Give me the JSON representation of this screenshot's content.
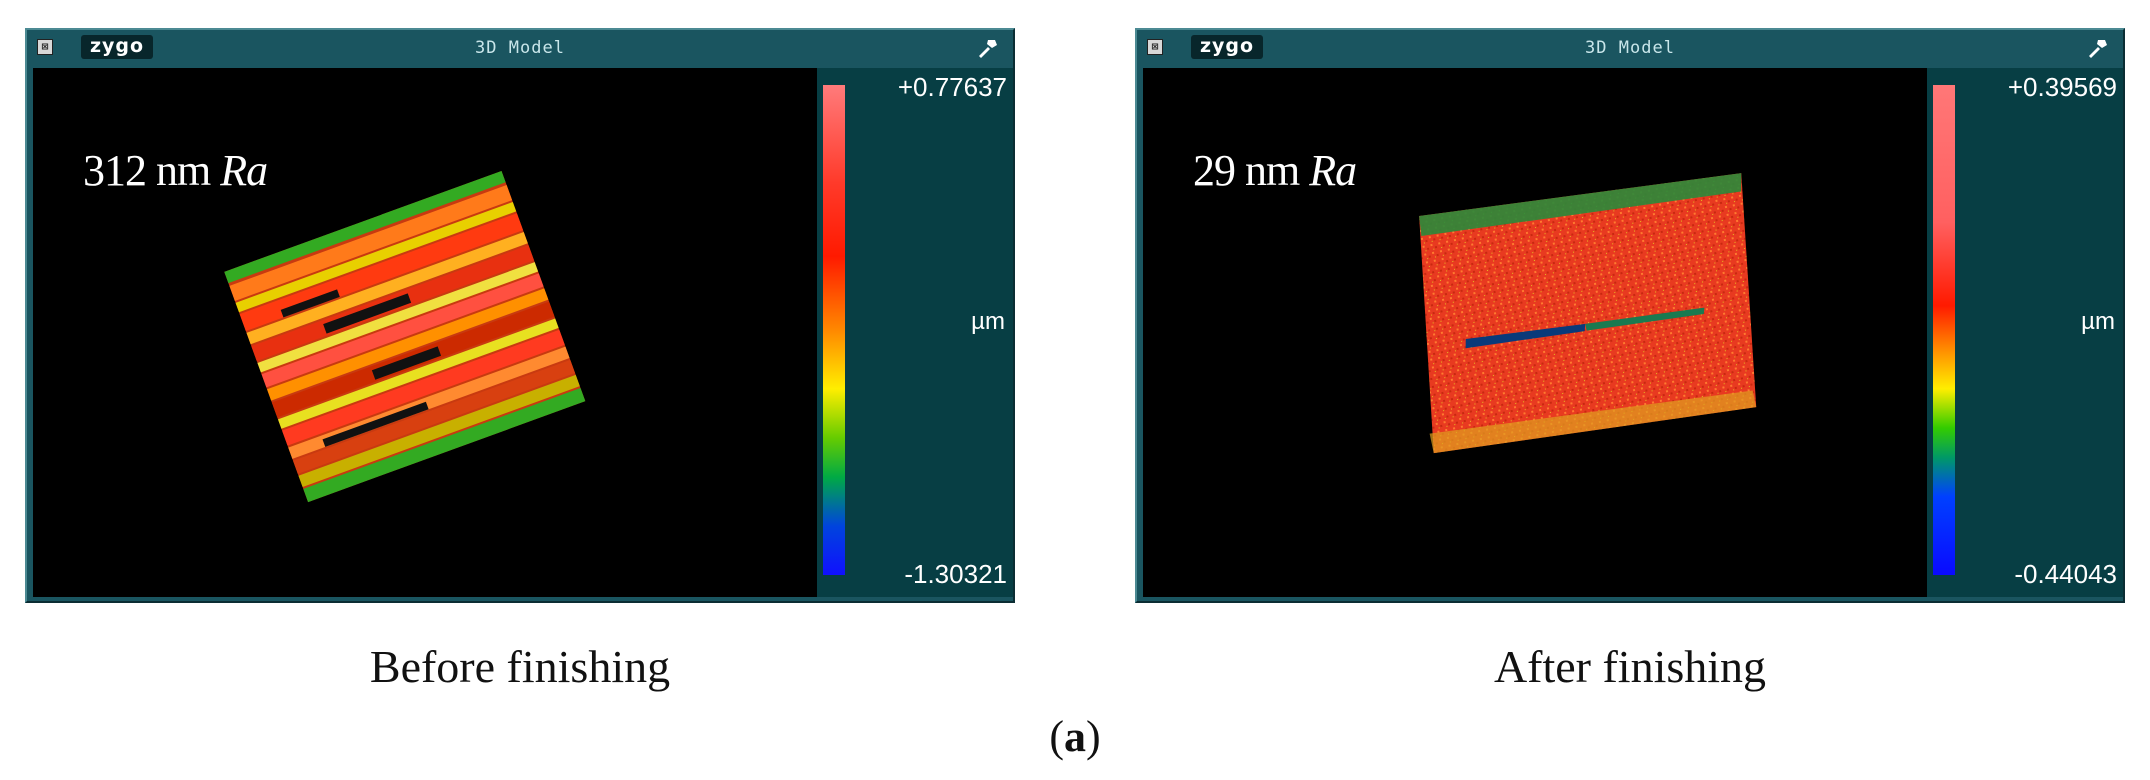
{
  "panels": [
    {
      "logo": "zygo",
      "close_glyph": "⊠",
      "title": "3D Model",
      "roughness_value": "312 nm",
      "roughness_unit": "Ra",
      "scale_max": "+0.77637",
      "scale_min": "-1.30321",
      "scale_unit": "µm",
      "caption": "Before finishing"
    },
    {
      "logo": "zygo",
      "close_glyph": "⊠",
      "title": "3D Model",
      "roughness_value": "29 nm",
      "roughness_unit": "Ra",
      "scale_max": "+0.39569",
      "scale_min": "-0.44043",
      "scale_unit": "µm",
      "caption": "After finishing"
    }
  ],
  "subfigure": {
    "open": "(",
    "label": "a",
    "close": ")"
  },
  "colors": {
    "window_frame": "#1a5560",
    "scale_panel": "#073e44",
    "viewport": "#000000"
  }
}
